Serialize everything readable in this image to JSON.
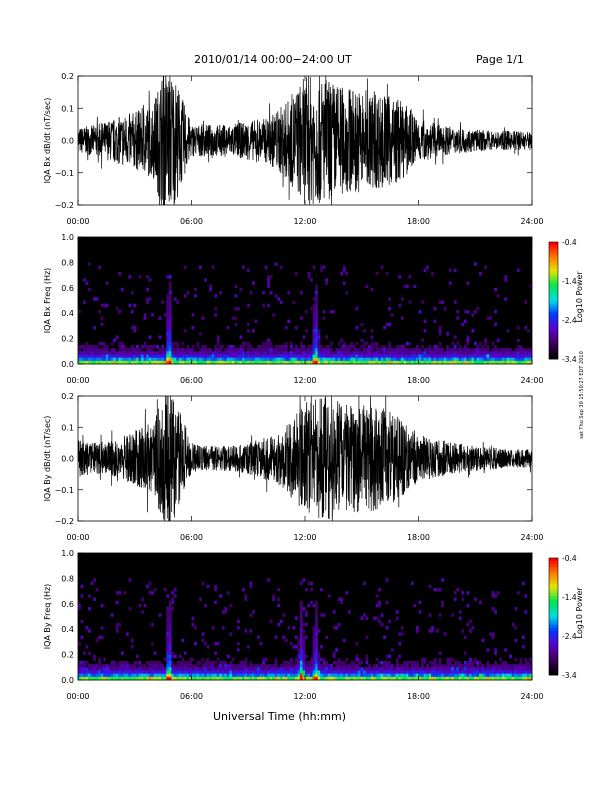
{
  "header": {
    "title": "2010/01/14  00:00−24:00 UT",
    "page": "Page 1/1"
  },
  "footer": {
    "xlabel": "Universal Time (hh:mm)"
  },
  "side_stamp": "sat Thu Sep 30 15:50:27 EDT 2010",
  "colors": {
    "background": "#ffffff",
    "trace": "#000000"
  },
  "colorbar": {
    "label": "Log10 Power",
    "ticks": [
      "-0.4",
      "-1.4",
      "-2.4",
      "-3.4"
    ]
  },
  "chart_data": [
    {
      "type": "line",
      "ylabel": "IQA Bx dB/dt (nT/sec)",
      "ylim": [
        -0.2,
        0.2
      ],
      "yticks": [
        "0.2",
        "0.1",
        "0.0",
        "−0.1",
        "−0.2"
      ],
      "xticks": [
        "00:00",
        "06:00",
        "12:00",
        "18:00",
        "24:00"
      ],
      "x": [
        "00:00",
        "01:00",
        "02:00",
        "03:00",
        "04:00",
        "04:30",
        "05:00",
        "06:00",
        "07:00",
        "08:00",
        "09:00",
        "10:00",
        "11:00",
        "12:00",
        "13:00",
        "14:00",
        "15:00",
        "16:00",
        "17:00",
        "18:00",
        "19:00",
        "20:00",
        "21:00",
        "22:00",
        "23:00",
        "24:00"
      ],
      "amplitude": [
        0.04,
        0.05,
        0.07,
        0.09,
        0.12,
        0.22,
        0.22,
        0.05,
        0.05,
        0.05,
        0.06,
        0.07,
        0.12,
        0.2,
        0.2,
        0.17,
        0.16,
        0.15,
        0.13,
        0.07,
        0.05,
        0.04,
        0.035,
        0.03,
        0.03,
        0.03
      ]
    },
    {
      "type": "heatmap",
      "ylabel": "IQA Bx Freq (Hz)",
      "ylim": [
        0.0,
        1.0
      ],
      "yticks": [
        "1.0",
        "0.8",
        "0.6",
        "0.4",
        "0.2",
        "0.0"
      ],
      "xticks": [
        "00:00",
        "06:00",
        "12:00",
        "18:00",
        "24:00"
      ],
      "colorbar_range": [
        -3.4,
        -0.4
      ],
      "bursts": [
        {
          "time": "04:45",
          "strength": 1.0
        },
        {
          "time": "12:30",
          "strength": 0.9
        }
      ]
    },
    {
      "type": "line",
      "ylabel": "IQA By dB/dt (nT/sec)",
      "ylim": [
        -0.2,
        0.2
      ],
      "yticks": [
        "0.2",
        "0.1",
        "0.0",
        "−0.1",
        "−0.2"
      ],
      "xticks": [
        "00:00",
        "06:00",
        "12:00",
        "18:00",
        "24:00"
      ],
      "x": [
        "00:00",
        "01:00",
        "02:00",
        "03:00",
        "04:00",
        "04:30",
        "05:00",
        "06:00",
        "07:00",
        "08:00",
        "09:00",
        "10:00",
        "11:00",
        "12:00",
        "13:00",
        "14:00",
        "15:00",
        "16:00",
        "17:00",
        "18:00",
        "19:00",
        "20:00",
        "21:00",
        "22:00",
        "23:00",
        "24:00"
      ],
      "amplitude": [
        0.06,
        0.05,
        0.06,
        0.09,
        0.12,
        0.22,
        0.22,
        0.05,
        0.04,
        0.04,
        0.05,
        0.07,
        0.11,
        0.18,
        0.2,
        0.18,
        0.17,
        0.17,
        0.13,
        0.08,
        0.06,
        0.05,
        0.04,
        0.035,
        0.03,
        0.03
      ]
    },
    {
      "type": "heatmap",
      "ylabel": "IQA By Freq (Hz)",
      "ylim": [
        0.0,
        1.0
      ],
      "yticks": [
        "1.0",
        "0.8",
        "0.6",
        "0.4",
        "0.2",
        "0.0"
      ],
      "xticks": [
        "00:00",
        "06:00",
        "12:00",
        "18:00",
        "24:00"
      ],
      "colorbar_range": [
        -3.4,
        -0.4
      ],
      "bursts": [
        {
          "time": "04:45",
          "strength": 1.0
        },
        {
          "time": "11:45",
          "strength": 0.8
        },
        {
          "time": "12:30",
          "strength": 0.8
        }
      ]
    }
  ]
}
